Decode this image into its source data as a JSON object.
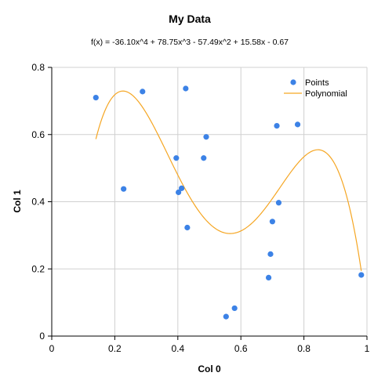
{
  "chart_data": {
    "type": "scatter",
    "title": "My Data",
    "subtitle": "f(x) = -36.10x^4 + 78.75x^3 - 57.49x^2 + 15.58x - 0.67",
    "xlabel": "Col 0",
    "ylabel": "Col 1",
    "xlim": [
      0,
      1
    ],
    "ylim": [
      0,
      0.8
    ],
    "x_ticks": [
      0,
      0.2,
      0.4,
      0.6,
      0.8,
      1
    ],
    "x_tick_labels": [
      "0",
      "0.2",
      "0.4",
      "0.6",
      "0.8",
      "1"
    ],
    "y_ticks": [
      0,
      0.2,
      0.4,
      0.6,
      0.8
    ],
    "y_tick_labels": [
      "0",
      "0.2",
      "0.4",
      "0.6",
      "0.8"
    ],
    "grid": true,
    "legend_position": "top-right",
    "series": [
      {
        "name": "Points",
        "type": "scatter",
        "color": "#3c82e6",
        "points": [
          {
            "x": 0.14,
            "y": 0.71
          },
          {
            "x": 0.228,
            "y": 0.438
          },
          {
            "x": 0.288,
            "y": 0.728
          },
          {
            "x": 0.395,
            "y": 0.53
          },
          {
            "x": 0.402,
            "y": 0.428
          },
          {
            "x": 0.412,
            "y": 0.44
          },
          {
            "x": 0.425,
            "y": 0.737
          },
          {
            "x": 0.43,
            "y": 0.323
          },
          {
            "x": 0.482,
            "y": 0.53
          },
          {
            "x": 0.49,
            "y": 0.593
          },
          {
            "x": 0.553,
            "y": 0.058
          },
          {
            "x": 0.58,
            "y": 0.083
          },
          {
            "x": 0.688,
            "y": 0.174
          },
          {
            "x": 0.694,
            "y": 0.244
          },
          {
            "x": 0.7,
            "y": 0.341
          },
          {
            "x": 0.714,
            "y": 0.626
          },
          {
            "x": 0.72,
            "y": 0.397
          },
          {
            "x": 0.78,
            "y": 0.63
          },
          {
            "x": 0.982,
            "y": 0.182
          }
        ]
      },
      {
        "name": "Polynomial",
        "type": "line",
        "color": "#f5a623",
        "coefficients": [
          -36.1,
          78.75,
          -57.49,
          15.58,
          -0.67
        ],
        "x_range": [
          0.14,
          0.982
        ]
      }
    ]
  }
}
